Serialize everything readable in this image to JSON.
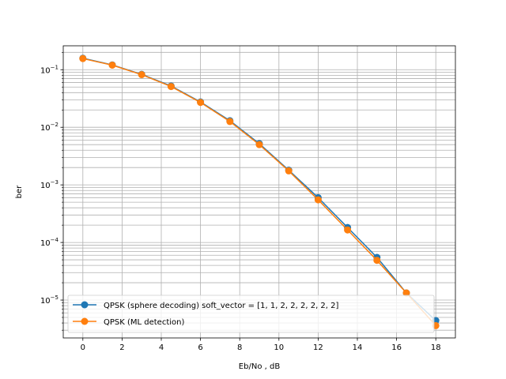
{
  "chart_data": {
    "type": "line",
    "title": "",
    "xlabel": "Eb/No , dB",
    "ylabel": "ber",
    "xlim": [
      -1,
      19
    ],
    "ylim": [
      2.2e-06,
      0.26
    ],
    "yscale": "log",
    "x_ticks": [
      0,
      2,
      4,
      6,
      8,
      10,
      12,
      14,
      16,
      18
    ],
    "y_ticks": [
      {
        "value": 1e-05,
        "base": "10",
        "exp": "−5"
      },
      {
        "value": 0.0001,
        "base": "10",
        "exp": "−4"
      },
      {
        "value": 0.001,
        "base": "10",
        "exp": "−3"
      },
      {
        "value": 0.01,
        "base": "10",
        "exp": "−2"
      },
      {
        "value": 0.1,
        "base": "10",
        "exp": "−1"
      }
    ],
    "grid": "major and minor",
    "legend_position": "lower-left",
    "x": [
      0,
      1.5,
      3,
      4.5,
      6,
      7.5,
      9,
      10.5,
      12,
      13.5,
      15,
      16.5,
      18
    ],
    "series": [
      {
        "name": "QPSK (sphere decoding) soft_vector = [1, 1, 2, 2, 2, 2, 2, 2]",
        "color": "#1f77b4",
        "values": [
          0.158,
          0.121,
          0.083,
          0.052,
          0.0275,
          0.013,
          0.0052,
          0.0018,
          0.0006,
          0.000182,
          5.5e-05,
          1.33e-05,
          4.4e-06
        ]
      },
      {
        "name": "QPSK (ML detection)",
        "color": "#ff7f0e",
        "values": [
          0.156,
          0.12,
          0.082,
          0.051,
          0.027,
          0.0126,
          0.005,
          0.00175,
          0.00055,
          0.000165,
          4.9e-05,
          1.33e-05,
          3.6e-06
        ]
      }
    ]
  }
}
